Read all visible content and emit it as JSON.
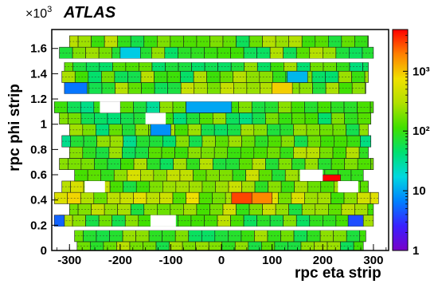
{
  "chart_data": {
    "type": "heatmap",
    "experiment_label": "ATLAS",
    "y_multiplier": "×10",
    "y_multiplier_exp": "3",
    "xlabel": "rpc eta strip",
    "ylabel": "rpc phi strip",
    "xlim": [
      -335,
      330
    ],
    "ylim": [
      0,
      1.75
    ],
    "x_ticks": [
      "-300",
      "-200",
      "-100",
      "0",
      "100",
      "200",
      "300"
    ],
    "x_tick_values": [
      -300,
      -200,
      -100,
      0,
      100,
      200,
      300
    ],
    "y_ticks": [
      "0",
      "0.2",
      "0.4",
      "0.6",
      "0.8",
      "1",
      "1.2",
      "1.4",
      "1.6"
    ],
    "y_tick_values": [
      0,
      0.2,
      0.4,
      0.6,
      0.8,
      1.0,
      1.2,
      1.4,
      1.6
    ],
    "z_scale": "log",
    "zlim": [
      1,
      5000
    ],
    "z_ticks": [
      "1",
      "10",
      "10²",
      "10³"
    ],
    "z_tick_values": [
      1,
      10,
      100,
      1000
    ],
    "colormap": [
      "#7a00c8",
      "#3a20ff",
      "#0080ff",
      "#00d8e0",
      "#00e070",
      "#40e000",
      "#b0e000",
      "#f0e000",
      "#ff8000",
      "#ff0000"
    ],
    "rows": [
      {
        "y0": 0.0,
        "y1": 0.07,
        "x0": -285,
        "x1": 280,
        "base": 120
      },
      {
        "y0": 0.07,
        "y1": 0.16,
        "x0": -290,
        "x1": 285,
        "base": 100
      },
      {
        "y0": 0.19,
        "y1": 0.28,
        "x0": -320,
        "x1": 300,
        "base": 140
      },
      {
        "y0": 0.28,
        "y1": 0.37,
        "x0": -300,
        "x1": 300,
        "base": 180
      },
      {
        "y0": 0.37,
        "y1": 0.46,
        "x0": -330,
        "x1": 310,
        "base": 300
      },
      {
        "y0": 0.46,
        "y1": 0.55,
        "x0": -315,
        "x1": 290,
        "base": 180
      },
      {
        "y0": 0.55,
        "y1": 0.64,
        "x0": -290,
        "x1": 280,
        "base": 200
      },
      {
        "y0": 0.64,
        "y1": 0.73,
        "x0": -320,
        "x1": 300,
        "base": 120
      },
      {
        "y0": 0.73,
        "y1": 0.82,
        "x0": -300,
        "x1": 290,
        "base": 140
      },
      {
        "y0": 0.82,
        "y1": 0.91,
        "x0": -315,
        "x1": 295,
        "base": 90
      },
      {
        "y0": 0.91,
        "y1": 1.0,
        "x0": -300,
        "x1": 290,
        "base": 110
      },
      {
        "y0": 1.0,
        "y1": 1.09,
        "x0": -320,
        "x1": 295,
        "base": 100
      },
      {
        "y0": 1.09,
        "y1": 1.18,
        "x0": -330,
        "x1": 300,
        "base": 80
      },
      {
        "y0": 1.24,
        "y1": 1.33,
        "x0": -305,
        "x1": 285,
        "base": 150
      },
      {
        "y0": 1.33,
        "y1": 1.42,
        "x0": -315,
        "x1": 290,
        "base": 120
      },
      {
        "y0": 1.42,
        "y1": 1.49,
        "x0": -310,
        "x1": 290,
        "base": 110
      },
      {
        "y0": 1.52,
        "y1": 1.61,
        "x0": -320,
        "x1": 300,
        "base": 130
      },
      {
        "y0": 1.61,
        "y1": 1.7,
        "x0": -300,
        "x1": 290,
        "base": 140
      }
    ],
    "hot_spots": [
      {
        "x0": 20,
        "x1": 60,
        "y0": 0.37,
        "y1": 0.46,
        "value": 3000
      },
      {
        "x0": 60,
        "x1": 100,
        "y0": 0.37,
        "y1": 0.46,
        "value": 1800
      },
      {
        "x0": 200,
        "x1": 235,
        "y0": 0.55,
        "y1": 0.6,
        "value": 5000
      },
      {
        "x0": -140,
        "x1": -100,
        "y0": 0.91,
        "y1": 1.0,
        "value": 8
      },
      {
        "x0": -310,
        "x1": -265,
        "y0": 1.24,
        "y1": 1.33,
        "value": 6
      },
      {
        "x0": -70,
        "x1": 20,
        "y0": 1.09,
        "y1": 1.18,
        "value": 10
      },
      {
        "x0": 130,
        "x1": 170,
        "y0": 1.33,
        "y1": 1.42,
        "value": 12
      },
      {
        "x0": -200,
        "x1": -160,
        "y0": 1.52,
        "y1": 1.61,
        "value": 15
      },
      {
        "x0": -330,
        "x1": -310,
        "y0": 0.19,
        "y1": 0.28,
        "value": 5
      },
      {
        "x0": 250,
        "x1": 280,
        "y0": 0.19,
        "y1": 0.28,
        "value": 4
      },
      {
        "x0": 100,
        "x1": 140,
        "y0": 1.24,
        "y1": 1.33,
        "value": 900
      }
    ],
    "empty_regions": [
      {
        "x0": -335,
        "x1": 330,
        "y0": 0.16,
        "y1": 0.19
      },
      {
        "x0": -335,
        "x1": 330,
        "y0": 1.18,
        "y1": 1.24
      },
      {
        "x0": -335,
        "x1": 330,
        "y0": 1.49,
        "y1": 1.52
      },
      {
        "x0": -270,
        "x1": -230,
        "y0": 0.46,
        "y1": 0.55
      },
      {
        "x0": 155,
        "x1": 200,
        "y0": 0.55,
        "y1": 0.64
      },
      {
        "x0": -150,
        "x1": -110,
        "y0": 1.0,
        "y1": 1.09
      },
      {
        "x0": -240,
        "x1": -200,
        "y0": 1.09,
        "y1": 1.18
      },
      {
        "x0": -140,
        "x1": -90,
        "y0": 0.19,
        "y1": 0.28
      },
      {
        "x0": 230,
        "x1": 270,
        "y0": 0.46,
        "y1": 0.55
      }
    ]
  }
}
